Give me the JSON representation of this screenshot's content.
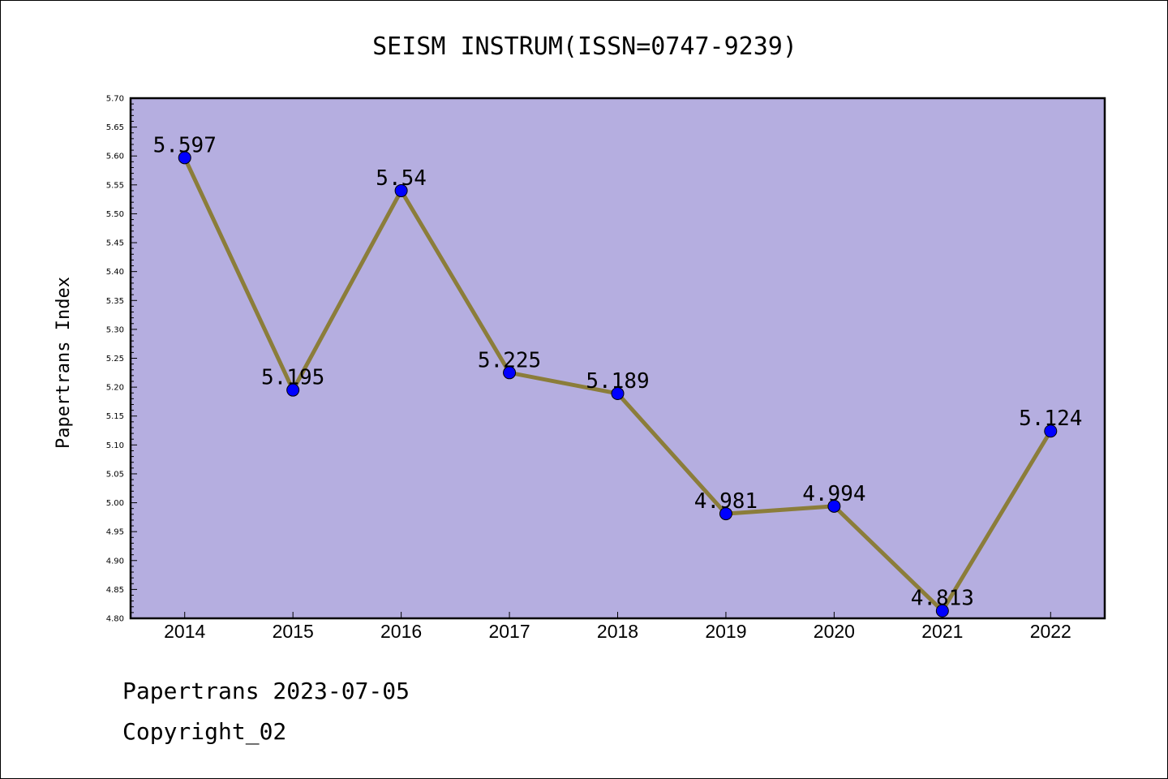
{
  "chart_data": {
    "type": "line",
    "title": "SEISM INSTRUM(ISSN=0747-9239)",
    "ylabel": "Papertrans Index",
    "xlabel": "",
    "categories": [
      "2014",
      "2015",
      "2016",
      "2017",
      "2018",
      "2019",
      "2020",
      "2021",
      "2022"
    ],
    "values": [
      5.597,
      5.195,
      5.54,
      5.225,
      5.189,
      4.981,
      4.994,
      4.813,
      5.124
    ],
    "data_labels": [
      "5.597",
      "5.195",
      "5.54",
      "5.225",
      "5.189",
      "4.981",
      "4.994",
      "4.813",
      "5.124"
    ],
    "ylim": [
      4.8,
      5.7
    ],
    "yticks": [
      "4.80",
      "4.85",
      "4.90",
      "4.95",
      "5.00",
      "5.05",
      "5.10",
      "5.15",
      "5.20",
      "5.25",
      "5.30",
      "5.35",
      "5.40",
      "5.45",
      "5.50",
      "5.55",
      "5.60",
      "5.65",
      "5.70"
    ],
    "grid": false,
    "colors": {
      "plot_background": "#b5aee0",
      "line": "#8b7d3a",
      "marker": "#0000ff"
    }
  },
  "footer": {
    "line1": "Papertrans 2023-07-05",
    "line2": "Copyright_02"
  }
}
